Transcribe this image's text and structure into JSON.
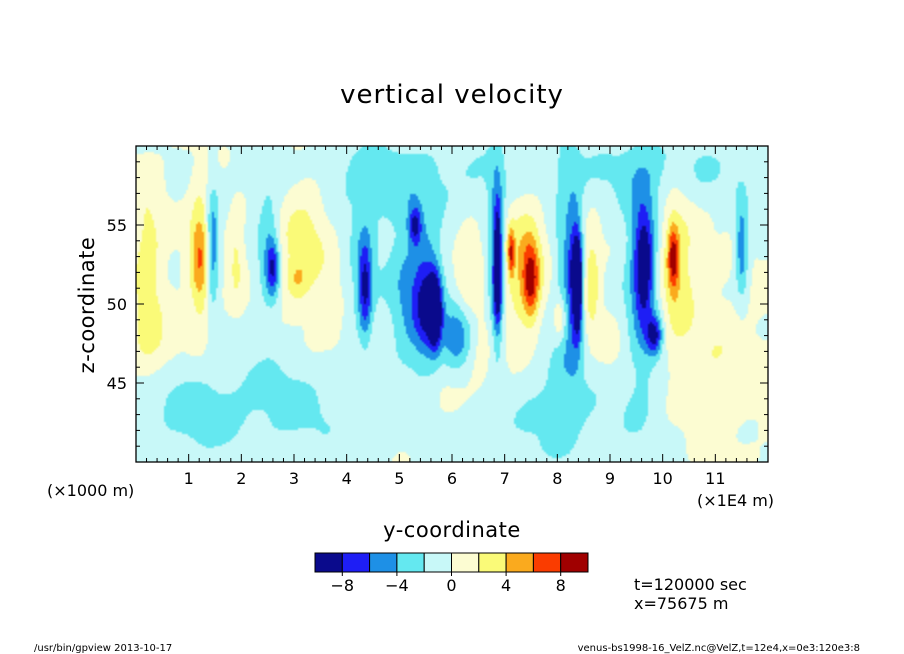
{
  "chart_data": {
    "type": "heatmap",
    "title": "vertical velocity",
    "xlabel": "y-coordinate",
    "ylabel": "z-coordinate",
    "x_unit": "(×1E4 m)",
    "y_unit": "(×1000 m)",
    "xlim": [
      0,
      12
    ],
    "ylim": [
      40,
      60
    ],
    "x_ticks": [
      "1",
      "2",
      "3",
      "4",
      "5",
      "6",
      "7",
      "8",
      "9",
      "10",
      "11"
    ],
    "y_ticks": [
      "45",
      "50",
      "55"
    ],
    "colorbar": {
      "levels": [
        -10,
        -8,
        -6,
        -4,
        -2,
        0,
        2,
        4,
        6,
        8,
        10
      ],
      "labels": [
        "−8",
        "−4",
        "0",
        "4",
        "8"
      ],
      "colors": [
        "#0a0a8c",
        "#1e1ef5",
        "#1e90e6",
        "#64e8f0",
        "#c8f8f8",
        "#fcfcd2",
        "#fafa78",
        "#faaa1e",
        "#fa3c00",
        "#a00000"
      ]
    },
    "features": [
      {
        "y": 0.22,
        "z": 52.5,
        "w": 0.28,
        "h": 5.0,
        "v": 3.2
      },
      {
        "y": 1.22,
        "z": 53.0,
        "w": 0.2,
        "h": 4.0,
        "v": 6.0
      },
      {
        "y": 1.45,
        "z": 53.5,
        "w": 0.12,
        "h": 3.5,
        "v": -6.5
      },
      {
        "y": 1.9,
        "z": 53.0,
        "w": 0.15,
        "h": 3.0,
        "v": 2.5
      },
      {
        "y": 2.5,
        "z": 53.5,
        "w": 0.22,
        "h": 4.0,
        "v": -3.5
      },
      {
        "y": 2.6,
        "z": 52.3,
        "w": 0.12,
        "h": 1.8,
        "v": -6.2
      },
      {
        "y": 3.2,
        "z": 54.5,
        "w": 0.5,
        "h": 4.5,
        "v": 3.2
      },
      {
        "y": 3.05,
        "z": 51.5,
        "w": 0.2,
        "h": 1.2,
        "v": 2.5
      },
      {
        "y": 4.3,
        "z": 51.5,
        "w": 0.3,
        "h": 5.0,
        "v": -3.2
      },
      {
        "y": 4.35,
        "z": 51.0,
        "w": 0.12,
        "h": 3.0,
        "v": -6.0
      },
      {
        "y": 5.2,
        "z": 50.5,
        "w": 0.45,
        "h": 5.5,
        "v": -4.5
      },
      {
        "y": 5.55,
        "z": 50.0,
        "w": 0.25,
        "h": 3.5,
        "v": -7.0
      },
      {
        "y": 5.68,
        "z": 49.5,
        "w": 0.12,
        "h": 2.2,
        "v": -9.0
      },
      {
        "y": 5.3,
        "z": 55.0,
        "w": 0.12,
        "h": 1.2,
        "v": -6.0
      },
      {
        "y": 6.1,
        "z": 48.0,
        "w": 0.3,
        "h": 2.5,
        "v": -6.0
      },
      {
        "y": 6.3,
        "z": 52.0,
        "w": 0.25,
        "h": 3.0,
        "v": 2.5
      },
      {
        "y": 6.85,
        "z": 52.5,
        "w": 0.15,
        "h": 6.0,
        "v": -6.0
      },
      {
        "y": 6.87,
        "z": 52.3,
        "w": 0.07,
        "h": 3.5,
        "v": -9.0
      },
      {
        "y": 7.35,
        "z": 52.5,
        "w": 0.4,
        "h": 4.5,
        "v": 4.0
      },
      {
        "y": 7.5,
        "z": 51.5,
        "w": 0.15,
        "h": 2.5,
        "v": 6.5
      },
      {
        "y": 7.12,
        "z": 53.2,
        "w": 0.06,
        "h": 1.5,
        "v": 6.0
      },
      {
        "y": 8.2,
        "z": 52.0,
        "w": 0.25,
        "h": 7.0,
        "v": -4.0
      },
      {
        "y": 8.35,
        "z": 51.5,
        "w": 0.12,
        "h": 4.0,
        "v": -7.5
      },
      {
        "y": 8.4,
        "z": 51.0,
        "w": 0.06,
        "h": 2.5,
        "v": -9.5
      },
      {
        "y": 8.65,
        "z": 51.5,
        "w": 0.15,
        "h": 3.0,
        "v": 4.0
      },
      {
        "y": 8.05,
        "z": 49.0,
        "w": 0.12,
        "h": 1.5,
        "v": 4.0
      },
      {
        "y": 9.6,
        "z": 51.5,
        "w": 0.35,
        "h": 7.0,
        "v": -4.5
      },
      {
        "y": 9.65,
        "z": 52.5,
        "w": 0.18,
        "h": 3.5,
        "v": -7.0
      },
      {
        "y": 9.85,
        "z": 48.0,
        "w": 0.15,
        "h": 1.2,
        "v": -7.0
      },
      {
        "y": 10.25,
        "z": 52.5,
        "w": 0.35,
        "h": 5.0,
        "v": 3.8
      },
      {
        "y": 10.2,
        "z": 53.0,
        "w": 0.1,
        "h": 2.0,
        "v": 6.5
      },
      {
        "y": 11.5,
        "z": 53.5,
        "w": 0.12,
        "h": 3.0,
        "v": -5.5
      },
      {
        "y": 11.0,
        "z": 46.0,
        "w": 0.8,
        "h": 4.0,
        "v": 1.8
      },
      {
        "y": 3.0,
        "z": 44.0,
        "w": 1.5,
        "h": 4.0,
        "v": -2.5
      },
      {
        "y": 8.0,
        "z": 44.0,
        "w": 1.8,
        "h": 5.0,
        "v": -2.6
      },
      {
        "y": 5.0,
        "z": 58.0,
        "w": 2.5,
        "h": 3.0,
        "v": -2.5
      },
      {
        "y": 10.0,
        "z": 58.5,
        "w": 2.0,
        "h": 2.5,
        "v": -2.3
      },
      {
        "y": 1.0,
        "z": 43.0,
        "w": 1.0,
        "h": 3.0,
        "v": -2.4
      },
      {
        "y": 6.5,
        "z": 46.0,
        "w": 1.0,
        "h": 3.0,
        "v": 2.2
      },
      {
        "y": 4.0,
        "z": 47.0,
        "w": 0.8,
        "h": 2.5,
        "v": 1.5
      },
      {
        "y": 0.3,
        "z": 47.5,
        "w": 0.4,
        "h": 2.0,
        "v": 2.0
      },
      {
        "y": 9.0,
        "z": 47.0,
        "w": 0.6,
        "h": 3.0,
        "v": 1.8
      }
    ]
  },
  "info": {
    "time": "t=120000 sec",
    "xpos": "x=75675 m"
  },
  "footer": {
    "left": "/usr/bin/gpview  2013-10-17",
    "right": "venus-bs1998-16_VelZ.nc@VelZ,t=12e4,x=0e3:120e3:8"
  }
}
